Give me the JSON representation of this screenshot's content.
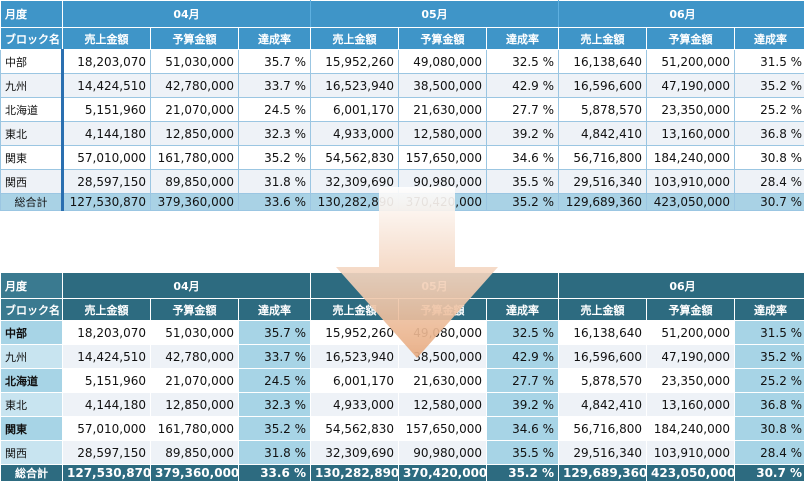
{
  "headers": {
    "month_label": "月度",
    "block_label": "ブロック名",
    "months": [
      "04月",
      "05月",
      "06月"
    ],
    "sales": "売上金額",
    "budget": "予算金額",
    "rate": "達成率"
  },
  "rows": [
    {
      "name": "中部",
      "values": [
        "18,203,070",
        "51,030,000",
        "35.7 %",
        "15,952,260",
        "49,080,000",
        "32.5 %",
        "16,138,640",
        "51,200,000",
        "31.5 %"
      ]
    },
    {
      "name": "九州",
      "values": [
        "14,424,510",
        "42,780,000",
        "33.7 %",
        "16,523,940",
        "38,500,000",
        "42.9 %",
        "16,596,600",
        "47,190,000",
        "35.2 %"
      ]
    },
    {
      "name": "北海道",
      "values": [
        "5,151,960",
        "21,070,000",
        "24.5 %",
        "6,001,170",
        "21,630,000",
        "27.7 %",
        "5,878,570",
        "23,350,000",
        "25.2 %"
      ]
    },
    {
      "name": "東北",
      "values": [
        "4,144,180",
        "12,850,000",
        "32.3 %",
        "4,933,000",
        "12,580,000",
        "39.2 %",
        "4,842,410",
        "13,160,000",
        "36.8 %"
      ]
    },
    {
      "name": "関東",
      "values": [
        "57,010,000",
        "161,780,000",
        "35.2 %",
        "54,562,830",
        "157,650,000",
        "34.6 %",
        "56,716,800",
        "184,240,000",
        "30.8 %"
      ]
    },
    {
      "name": "関西",
      "values": [
        "28,597,150",
        "89,850,000",
        "31.8 %",
        "32,309,690",
        "90,980,000",
        "35.5 %",
        "29,516,340",
        "103,910,000",
        "28.4 %"
      ]
    }
  ],
  "total": {
    "name": "総合計",
    "values": [
      "127,530,870",
      "379,360,000",
      "33.6 %",
      "130,282,890",
      "370,420,000",
      "35.2 %",
      "129,689,360",
      "423,050,000",
      "30.7 %"
    ]
  },
  "colors": {
    "top_header": "#3f95c8",
    "bottom_header": "#2d6b80",
    "rate_fill": "#a7d4e6",
    "arrow_top": "#ffffff",
    "arrow_bottom": "#e8ab80"
  },
  "arrow_icon": "down-arrow-icon"
}
